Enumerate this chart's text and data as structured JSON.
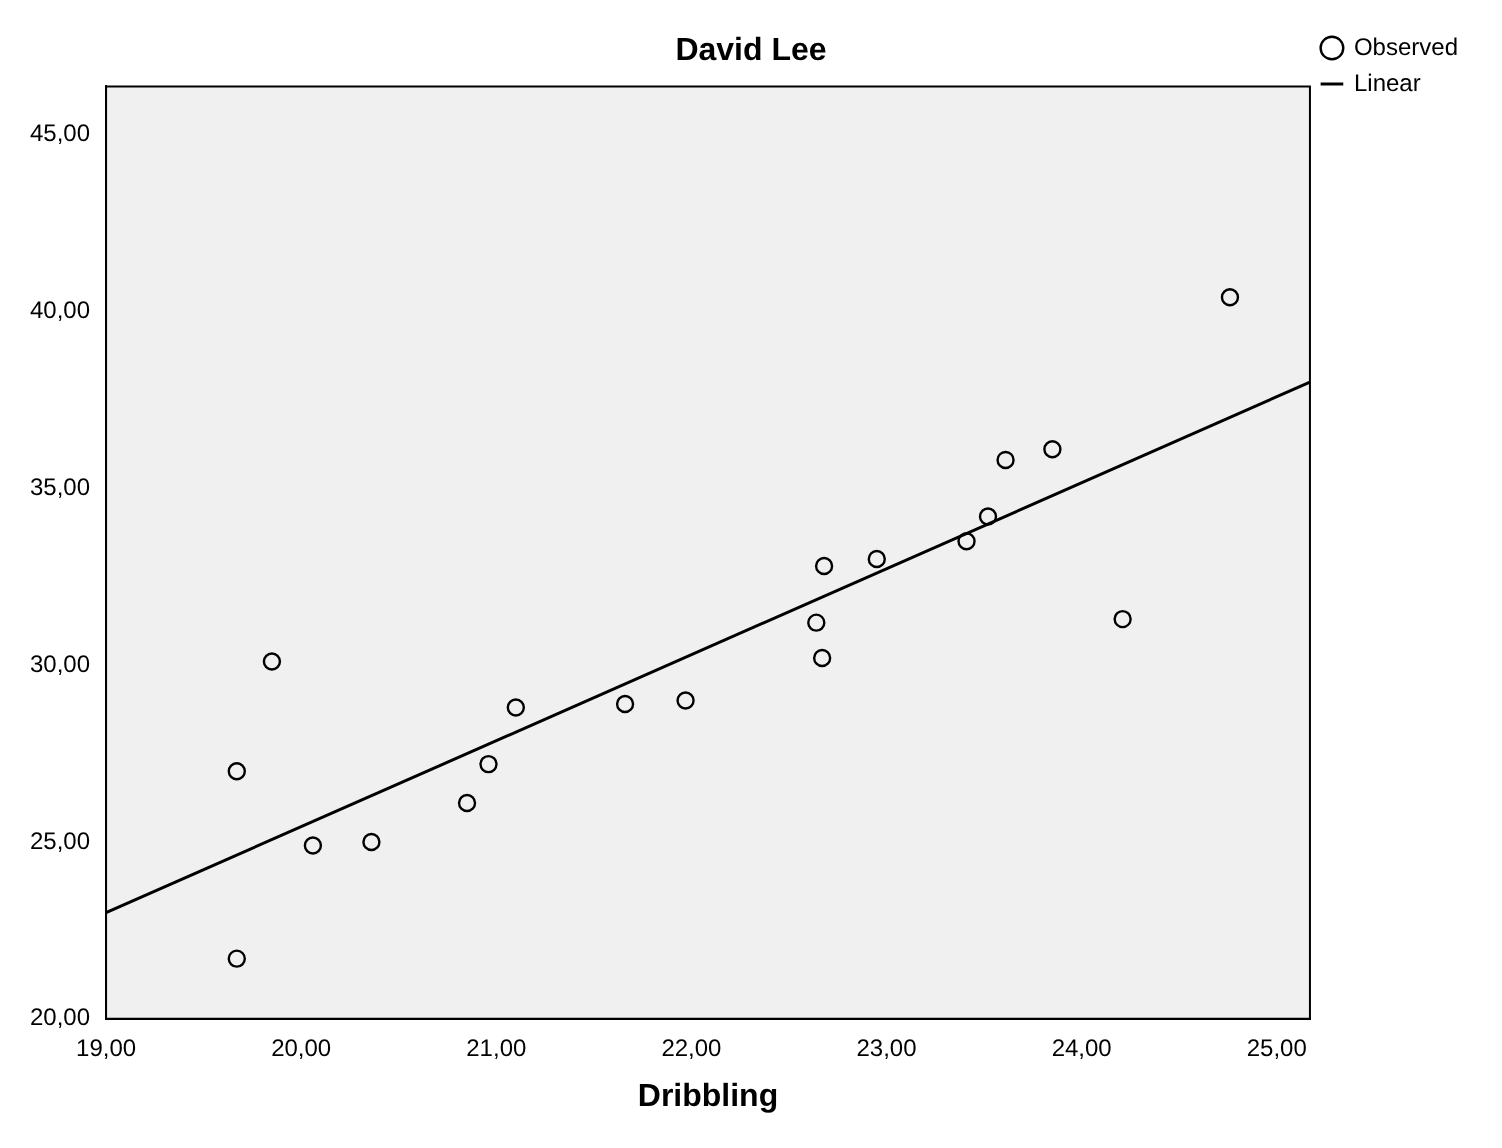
{
  "chart_data": {
    "type": "scatter",
    "title": "David Lee",
    "xlabel": "Dribbling",
    "xlim": [
      19,
      25.17
    ],
    "ylim": [
      20,
      46.36
    ],
    "xticks": [
      {
        "value": 19,
        "label": "19,00"
      },
      {
        "value": 20,
        "label": "20,00"
      },
      {
        "value": 21,
        "label": "21,00"
      },
      {
        "value": 22,
        "label": "22,00"
      },
      {
        "value": 23,
        "label": "23,00"
      },
      {
        "value": 24,
        "label": "24,00"
      },
      {
        "value": 25,
        "label": "25,00"
      }
    ],
    "yticks": [
      {
        "value": 20,
        "label": "20,00"
      },
      {
        "value": 25,
        "label": "25,00"
      },
      {
        "value": 30,
        "label": "30,00"
      },
      {
        "value": 35,
        "label": "35,00"
      },
      {
        "value": 40,
        "label": "40,00"
      },
      {
        "value": 45,
        "label": "45,00"
      }
    ],
    "legend": "top right",
    "grid": false,
    "series": [
      {
        "name": "Observed",
        "color": "#000000",
        "marker": "circle",
        "x": [
          19.67,
          19.85,
          19.67,
          20.06,
          20.36,
          20.85,
          20.96,
          21.1,
          21.66,
          21.97,
          22.67,
          22.64,
          22.68,
          22.95,
          23.41,
          23.52,
          23.61,
          23.85,
          24.21,
          24.76
        ],
        "values": [
          27.0,
          30.1,
          21.7,
          24.9,
          25.0,
          26.1,
          27.2,
          28.8,
          28.9,
          29.0,
          30.2,
          31.2,
          32.8,
          33.0,
          33.5,
          34.2,
          35.8,
          36.1,
          31.3,
          40.4
        ]
      },
      {
        "type": "line",
        "name": "Linear",
        "color": "#000000",
        "x": [
          19,
          25.17
        ],
        "values": [
          23.0,
          38.0
        ]
      }
    ]
  }
}
